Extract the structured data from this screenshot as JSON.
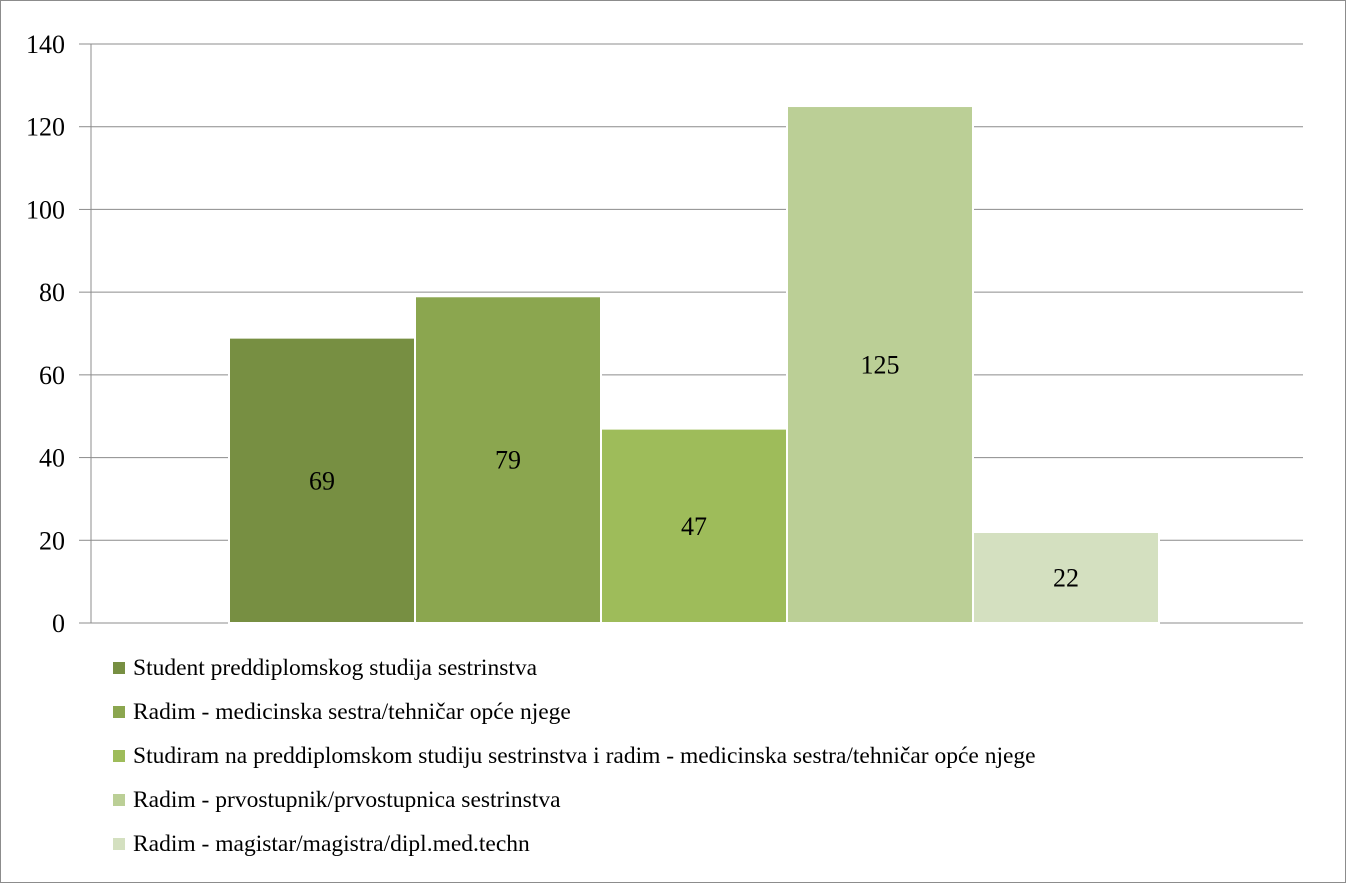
{
  "chart_data": {
    "type": "bar",
    "title": "",
    "xlabel": "",
    "ylabel": "",
    "ylim": [
      0,
      140
    ],
    "yticks": [
      0,
      20,
      40,
      60,
      80,
      100,
      120,
      140
    ],
    "grid": true,
    "legend_position": "bottom",
    "series": [
      {
        "name": "Student preddiplomskog studija sestrinstva",
        "value": 69,
        "color": "#778f42"
      },
      {
        "name": "Radim - medicinska sestra/tehničar opće njege",
        "value": 79,
        "color": "#8ba64f"
      },
      {
        "name": "Studiram na preddiplomskom studiju sestrinstva i radim - medicinska sestra/tehničar opće njege",
        "value": 47,
        "color": "#9ebc5a"
      },
      {
        "name": "Radim - prvostupnik/prvostupnica sestrinstva",
        "value": 125,
        "color": "#bbcf96"
      },
      {
        "name": "Radim - magistar/magistra/dipl.med.techn",
        "value": 22,
        "color": "#d4e0c0"
      }
    ]
  }
}
